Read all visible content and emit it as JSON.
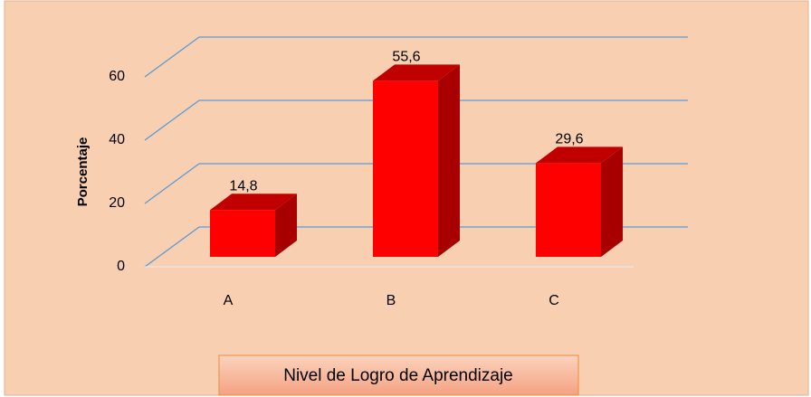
{
  "chart_data": {
    "type": "bar3d",
    "categories": [
      "A",
      "B",
      "C"
    ],
    "values": [
      14.8,
      55.6,
      29.6
    ],
    "value_labels": [
      "14,8",
      "55,6",
      "29,6"
    ],
    "color": "#ff0000",
    "ylabel": "Porcentaje",
    "xlabel": "Nivel de Logro de Aprendizaje",
    "ylim": [
      0,
      60
    ],
    "yticks": [
      0,
      20,
      40,
      60
    ],
    "grid": true
  }
}
